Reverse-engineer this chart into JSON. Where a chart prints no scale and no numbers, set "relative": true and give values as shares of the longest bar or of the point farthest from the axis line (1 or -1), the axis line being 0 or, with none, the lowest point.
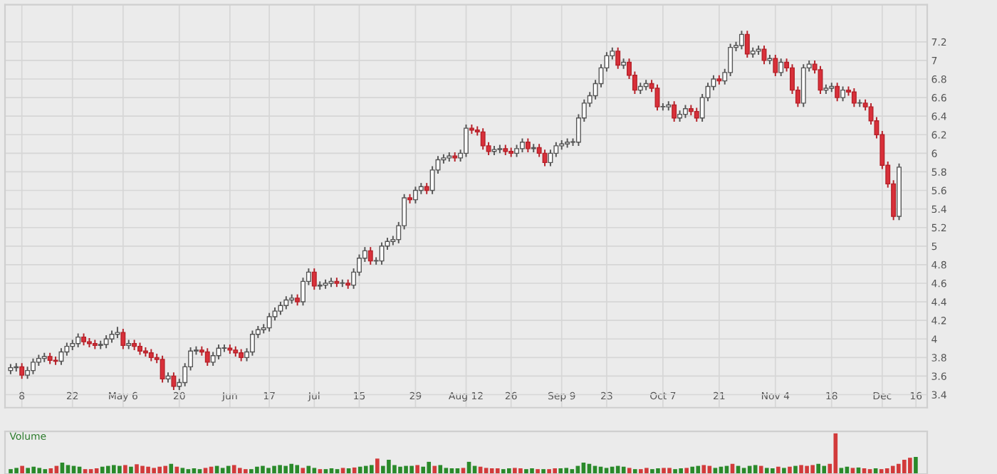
{
  "chart_data": [
    {
      "type": "candlestick",
      "categories": [
        null,
        null,
        "8",
        null,
        null,
        null,
        null,
        null,
        null,
        null,
        null,
        "22",
        null,
        null,
        null,
        null,
        null,
        null,
        null,
        null,
        "May 6",
        null,
        null,
        null,
        null,
        null,
        null,
        null,
        null,
        null,
        "20",
        null,
        null,
        null,
        null,
        null,
        null,
        null,
        null,
        "Jun",
        null,
        null,
        null,
        null,
        null,
        null,
        "17",
        null,
        null,
        null,
        null,
        null,
        null,
        null,
        "Jul",
        null,
        null,
        null,
        null,
        null,
        null,
        null,
        "15",
        null,
        null,
        null,
        null,
        null,
        null,
        null,
        null,
        null,
        "29",
        null,
        null,
        null,
        null,
        null,
        null,
        null,
        null,
        "Aug 12",
        null,
        null,
        null,
        null,
        null,
        null,
        null,
        "26",
        null,
        null,
        null,
        null,
        null,
        null,
        null,
        null,
        "Sep 9",
        null,
        null,
        null,
        null,
        null,
        null,
        null,
        "23",
        null,
        null,
        null,
        null,
        null,
        null,
        null,
        null,
        null,
        "Oct 7",
        null,
        null,
        null,
        null,
        null,
        null,
        null,
        null,
        null,
        "21",
        null,
        null,
        null,
        null,
        null,
        null,
        null,
        null,
        null,
        "Nov 4",
        null,
        null,
        null,
        null,
        null,
        null,
        null,
        null,
        null,
        "18",
        null,
        null,
        null,
        null,
        null,
        null,
        null,
        null,
        "Dec",
        null,
        null,
        null,
        null,
        null,
        "16"
      ],
      "ohlc": [
        [
          3.66,
          3.73,
          3.62,
          3.69
        ],
        [
          3.69,
          3.74,
          3.65,
          3.7
        ],
        [
          3.7,
          3.74,
          3.57,
          3.61
        ],
        [
          3.61,
          3.7,
          3.57,
          3.66
        ],
        [
          3.66,
          3.79,
          3.62,
          3.75
        ],
        [
          3.75,
          3.83,
          3.71,
          3.79
        ],
        [
          3.79,
          3.85,
          3.75,
          3.81
        ],
        [
          3.81,
          3.85,
          3.73,
          3.77
        ],
        [
          3.77,
          3.81,
          3.72,
          3.76
        ],
        [
          3.76,
          3.9,
          3.72,
          3.86
        ],
        [
          3.86,
          3.96,
          3.82,
          3.92
        ],
        [
          3.92,
          3.99,
          3.88,
          3.95
        ],
        [
          3.95,
          4.06,
          3.91,
          4.02
        ],
        [
          4.02,
          4.06,
          3.93,
          3.97
        ],
        [
          3.97,
          4.01,
          3.91,
          3.95
        ],
        [
          3.95,
          3.99,
          3.89,
          3.93
        ],
        [
          3.93,
          3.98,
          3.89,
          3.94
        ],
        [
          3.94,
          4.04,
          3.9,
          4.0
        ],
        [
          4.0,
          4.09,
          3.96,
          4.05
        ],
        [
          4.05,
          4.13,
          4.01,
          4.07
        ],
        [
          4.07,
          4.11,
          3.89,
          3.93
        ],
        [
          3.93,
          3.99,
          3.89,
          3.95
        ],
        [
          3.95,
          3.99,
          3.88,
          3.92
        ],
        [
          3.92,
          3.96,
          3.83,
          3.87
        ],
        [
          3.87,
          3.91,
          3.81,
          3.85
        ],
        [
          3.85,
          3.89,
          3.76,
          3.8
        ],
        [
          3.8,
          3.84,
          3.74,
          3.78
        ],
        [
          3.78,
          3.82,
          3.53,
          3.57
        ],
        [
          3.57,
          3.64,
          3.53,
          3.6
        ],
        [
          3.6,
          3.64,
          3.45,
          3.49
        ],
        [
          3.49,
          3.57,
          3.45,
          3.53
        ],
        [
          3.53,
          3.74,
          3.49,
          3.7
        ],
        [
          3.7,
          3.91,
          3.66,
          3.87
        ],
        [
          3.87,
          3.92,
          3.83,
          3.88
        ],
        [
          3.88,
          3.92,
          3.82,
          3.86
        ],
        [
          3.86,
          3.9,
          3.71,
          3.75
        ],
        [
          3.75,
          3.86,
          3.71,
          3.82
        ],
        [
          3.82,
          3.94,
          3.78,
          3.9
        ],
        [
          3.9,
          3.94,
          3.86,
          3.9
        ],
        [
          3.9,
          3.94,
          3.84,
          3.88
        ],
        [
          3.88,
          3.92,
          3.81,
          3.85
        ],
        [
          3.85,
          3.89,
          3.76,
          3.8
        ],
        [
          3.8,
          3.9,
          3.76,
          3.86
        ],
        [
          3.86,
          4.09,
          3.82,
          4.05
        ],
        [
          4.05,
          4.14,
          4.01,
          4.1
        ],
        [
          4.1,
          4.16,
          4.06,
          4.12
        ],
        [
          4.12,
          4.28,
          4.08,
          4.24
        ],
        [
          4.24,
          4.34,
          4.2,
          4.3
        ],
        [
          4.3,
          4.4,
          4.26,
          4.36
        ],
        [
          4.36,
          4.46,
          4.32,
          4.42
        ],
        [
          4.42,
          4.48,
          4.38,
          4.44
        ],
        [
          4.44,
          4.48,
          4.36,
          4.4
        ],
        [
          4.4,
          4.66,
          4.36,
          4.62
        ],
        [
          4.62,
          4.76,
          4.58,
          4.72
        ],
        [
          4.72,
          4.76,
          4.53,
          4.57
        ],
        [
          4.57,
          4.62,
          4.53,
          4.58
        ],
        [
          4.58,
          4.64,
          4.54,
          4.6
        ],
        [
          4.6,
          4.66,
          4.56,
          4.62
        ],
        [
          4.62,
          4.66,
          4.56,
          4.6
        ],
        [
          4.6,
          4.64,
          4.56,
          4.6
        ],
        [
          4.6,
          4.64,
          4.54,
          4.58
        ],
        [
          4.58,
          4.76,
          4.54,
          4.72
        ],
        [
          4.72,
          4.91,
          4.68,
          4.87
        ],
        [
          4.87,
          4.99,
          4.83,
          4.95
        ],
        [
          4.95,
          4.99,
          4.8,
          4.84
        ],
        [
          4.84,
          4.88,
          4.8,
          4.84
        ],
        [
          4.84,
          5.04,
          4.8,
          5.0
        ],
        [
          5.0,
          5.09,
          4.96,
          5.05
        ],
        [
          5.05,
          5.11,
          5.01,
          5.07
        ],
        [
          5.07,
          5.26,
          5.03,
          5.22
        ],
        [
          5.22,
          5.56,
          5.18,
          5.52
        ],
        [
          5.52,
          5.56,
          5.46,
          5.5
        ],
        [
          5.5,
          5.64,
          5.46,
          5.6
        ],
        [
          5.6,
          5.68,
          5.56,
          5.64
        ],
        [
          5.64,
          5.68,
          5.56,
          5.6
        ],
        [
          5.6,
          5.86,
          5.56,
          5.82
        ],
        [
          5.82,
          5.97,
          5.78,
          5.93
        ],
        [
          5.93,
          5.99,
          5.89,
          5.95
        ],
        [
          5.95,
          6.01,
          5.91,
          5.97
        ],
        [
          5.97,
          6.01,
          5.91,
          5.95
        ],
        [
          5.95,
          6.04,
          5.91,
          6.0
        ],
        [
          6.0,
          6.31,
          5.96,
          6.27
        ],
        [
          6.27,
          6.31,
          6.21,
          6.25
        ],
        [
          6.25,
          6.29,
          6.19,
          6.23
        ],
        [
          6.23,
          6.27,
          6.04,
          6.08
        ],
        [
          6.08,
          6.12,
          5.98,
          6.02
        ],
        [
          6.02,
          6.08,
          5.98,
          6.04
        ],
        [
          6.04,
          6.09,
          6.0,
          6.05
        ],
        [
          6.05,
          6.09,
          5.98,
          6.02
        ],
        [
          6.02,
          6.06,
          5.96,
          6.0
        ],
        [
          6.0,
          6.09,
          5.96,
          6.05
        ],
        [
          6.05,
          6.16,
          6.01,
          6.12
        ],
        [
          6.12,
          6.16,
          6.01,
          6.05
        ],
        [
          6.05,
          6.1,
          6.01,
          6.06
        ],
        [
          6.06,
          6.1,
          5.96,
          6.0
        ],
        [
          6.0,
          6.04,
          5.86,
          5.9
        ],
        [
          5.9,
          6.04,
          5.86,
          6.0
        ],
        [
          6.0,
          6.12,
          5.96,
          6.08
        ],
        [
          6.08,
          6.14,
          6.04,
          6.1
        ],
        [
          6.1,
          6.16,
          6.06,
          6.12
        ],
        [
          6.12,
          6.16,
          6.08,
          6.12
        ],
        [
          6.12,
          6.42,
          6.08,
          6.38
        ],
        [
          6.38,
          6.58,
          6.34,
          6.54
        ],
        [
          6.54,
          6.66,
          6.5,
          6.62
        ],
        [
          6.62,
          6.79,
          6.58,
          6.75
        ],
        [
          6.75,
          6.96,
          6.71,
          6.92
        ],
        [
          6.92,
          7.09,
          6.88,
          7.05
        ],
        [
          7.05,
          7.14,
          7.01,
          7.1
        ],
        [
          7.1,
          7.14,
          6.91,
          6.95
        ],
        [
          6.95,
          7.02,
          6.91,
          6.98
        ],
        [
          6.98,
          7.02,
          6.8,
          6.84
        ],
        [
          6.84,
          6.88,
          6.64,
          6.68
        ],
        [
          6.68,
          6.76,
          6.64,
          6.72
        ],
        [
          6.72,
          6.79,
          6.68,
          6.75
        ],
        [
          6.75,
          6.79,
          6.66,
          6.7
        ],
        [
          6.7,
          6.74,
          6.46,
          6.5
        ],
        [
          6.5,
          6.54,
          6.46,
          6.5
        ],
        [
          6.5,
          6.56,
          6.46,
          6.52
        ],
        [
          6.52,
          6.56,
          6.34,
          6.38
        ],
        [
          6.38,
          6.46,
          6.34,
          6.42
        ],
        [
          6.42,
          6.52,
          6.38,
          6.48
        ],
        [
          6.48,
          6.52,
          6.41,
          6.45
        ],
        [
          6.45,
          6.49,
          6.34,
          6.38
        ],
        [
          6.38,
          6.64,
          6.34,
          6.6
        ],
        [
          6.6,
          6.76,
          6.56,
          6.72
        ],
        [
          6.72,
          6.84,
          6.68,
          6.8
        ],
        [
          6.8,
          6.84,
          6.74,
          6.78
        ],
        [
          6.78,
          6.91,
          6.74,
          6.87
        ],
        [
          6.87,
          7.18,
          6.83,
          7.14
        ],
        [
          7.14,
          7.2,
          7.1,
          7.16
        ],
        [
          7.16,
          7.32,
          7.12,
          7.28
        ],
        [
          7.28,
          7.32,
          7.03,
          7.07
        ],
        [
          7.07,
          7.14,
          7.03,
          7.1
        ],
        [
          7.1,
          7.16,
          7.06,
          7.12
        ],
        [
          7.12,
          7.16,
          6.96,
          7.0
        ],
        [
          7.0,
          7.06,
          6.96,
          7.02
        ],
        [
          7.02,
          7.06,
          6.83,
          6.87
        ],
        [
          6.87,
          7.02,
          6.83,
          6.98
        ],
        [
          6.98,
          7.02,
          6.88,
          6.92
        ],
        [
          6.92,
          6.96,
          6.64,
          6.68
        ],
        [
          6.68,
          6.72,
          6.5,
          6.54
        ],
        [
          6.54,
          6.96,
          6.5,
          6.92
        ],
        [
          6.92,
          7.0,
          6.88,
          6.96
        ],
        [
          6.96,
          7.0,
          6.86,
          6.9
        ],
        [
          6.9,
          6.94,
          6.64,
          6.68
        ],
        [
          6.68,
          6.74,
          6.64,
          6.7
        ],
        [
          6.7,
          6.76,
          6.66,
          6.72
        ],
        [
          6.72,
          6.76,
          6.56,
          6.6
        ],
        [
          6.6,
          6.72,
          6.56,
          6.68
        ],
        [
          6.68,
          6.72,
          6.62,
          6.66
        ],
        [
          6.66,
          6.7,
          6.5,
          6.54
        ],
        [
          6.54,
          6.58,
          6.5,
          6.54
        ],
        [
          6.54,
          6.58,
          6.46,
          6.5
        ],
        [
          6.5,
          6.54,
          6.31,
          6.35
        ],
        [
          6.35,
          6.39,
          6.16,
          6.2
        ],
        [
          6.2,
          6.24,
          5.83,
          5.87
        ],
        [
          5.87,
          5.91,
          5.63,
          5.67
        ],
        [
          5.67,
          5.71,
          5.28,
          5.32
        ],
        [
          5.32,
          5.89,
          5.28,
          5.85
        ],
        null,
        null,
        null
      ],
      "ylim": [
        3.26,
        7.6
      ],
      "yticks": [
        3.4,
        3.6,
        3.8,
        4,
        4.2,
        4.4,
        4.6,
        4.8,
        5,
        5.2,
        5.4,
        5.6,
        5.8,
        6,
        6.2,
        6.4,
        6.6,
        6.8,
        7,
        7.2
      ],
      "grid": true
    },
    {
      "type": "bar",
      "title": "Volume",
      "relative": true,
      "categories": [
        null,
        null,
        null,
        null,
        null,
        null,
        null,
        null,
        null,
        null,
        null,
        null,
        null,
        null,
        null,
        null,
        null,
        null,
        null,
        null,
        null,
        null,
        null,
        null,
        null,
        null,
        null,
        null,
        null,
        null,
        null,
        null,
        null,
        null,
        null,
        null,
        null,
        null,
        null,
        null,
        null,
        null,
        null,
        null,
        null,
        null,
        null,
        null,
        null,
        null,
        null,
        null,
        null,
        null,
        null,
        null,
        null,
        null,
        null,
        null,
        null,
        null,
        null,
        null,
        null,
        null,
        null,
        null,
        null,
        null,
        null,
        null,
        null,
        null,
        null,
        null,
        null,
        null,
        null,
        null,
        null,
        null,
        null,
        null,
        null,
        null,
        null,
        null,
        null,
        null,
        null,
        null,
        null,
        null,
        null,
        null,
        null,
        null,
        null,
        null,
        null,
        null,
        null,
        null,
        null,
        null,
        null,
        null,
        null,
        null,
        null,
        null,
        null,
        null,
        null,
        null,
        null,
        null,
        null,
        null,
        null,
        null,
        null,
        null,
        null,
        null,
        null,
        null,
        null,
        null,
        null,
        null,
        null,
        null,
        null,
        null,
        null,
        null,
        null,
        null,
        null,
        null,
        null,
        null,
        null,
        null,
        null,
        null,
        null,
        null,
        null,
        null,
        null,
        null,
        null,
        null,
        null,
        null,
        null
      ],
      "values": [
        0.12,
        0.15,
        0.2,
        0.15,
        0.18,
        0.15,
        0.12,
        0.14,
        0.2,
        0.28,
        0.22,
        0.2,
        0.18,
        0.12,
        0.12,
        0.14,
        0.18,
        0.2,
        0.22,
        0.2,
        0.22,
        0.18,
        0.24,
        0.2,
        0.18,
        0.15,
        0.18,
        0.2,
        0.25,
        0.18,
        0.15,
        0.12,
        0.14,
        0.12,
        0.15,
        0.18,
        0.2,
        0.15,
        0.2,
        0.22,
        0.15,
        0.12,
        0.12,
        0.18,
        0.2,
        0.15,
        0.2,
        0.22,
        0.2,
        0.25,
        0.22,
        0.15,
        0.2,
        0.15,
        0.12,
        0.12,
        0.14,
        0.12,
        0.15,
        0.14,
        0.16,
        0.18,
        0.2,
        0.22,
        0.38,
        0.2,
        0.35,
        0.22,
        0.18,
        0.2,
        0.2,
        0.22,
        0.18,
        0.3,
        0.2,
        0.22,
        0.15,
        0.14,
        0.14,
        0.15,
        0.3,
        0.2,
        0.18,
        0.15,
        0.14,
        0.14,
        0.12,
        0.14,
        0.15,
        0.14,
        0.12,
        0.14,
        0.12,
        0.12,
        0.12,
        0.14,
        0.14,
        0.15,
        0.12,
        0.2,
        0.28,
        0.25,
        0.2,
        0.18,
        0.15,
        0.18,
        0.2,
        0.18,
        0.15,
        0.12,
        0.12,
        0.15,
        0.12,
        0.14,
        0.15,
        0.15,
        0.12,
        0.14,
        0.15,
        0.18,
        0.2,
        0.22,
        0.2,
        0.15,
        0.18,
        0.2,
        0.25,
        0.2,
        0.15,
        0.2,
        0.22,
        0.2,
        0.15,
        0.14,
        0.18,
        0.15,
        0.18,
        0.2,
        0.22,
        0.2,
        0.22,
        0.25,
        0.2,
        0.25,
        1.0,
        0.15,
        0.18,
        0.15,
        0.16,
        0.14,
        0.12,
        0.14,
        0.12,
        0.14,
        0.2,
        0.25,
        0.35,
        0.4,
        0.42
      ],
      "colors": [
        "#2a8a2a",
        "#2a8a2a",
        "#d23b3b",
        "#2a8a2a",
        "#2a8a2a",
        "#2a8a2a",
        "#2a8a2a",
        "#d23b3b",
        "#d23b3b",
        "#2a8a2a",
        "#2a8a2a",
        "#2a8a2a",
        "#2a8a2a",
        "#d23b3b",
        "#d23b3b",
        "#d23b3b",
        "#2a8a2a",
        "#2a8a2a",
        "#2a8a2a",
        "#2a8a2a",
        "#d23b3b",
        "#2a8a2a",
        "#d23b3b",
        "#d23b3b",
        "#d23b3b",
        "#d23b3b",
        "#d23b3b",
        "#d23b3b",
        "#2a8a2a",
        "#d23b3b",
        "#2a8a2a",
        "#2a8a2a",
        "#2a8a2a",
        "#2a8a2a",
        "#d23b3b",
        "#d23b3b",
        "#2a8a2a",
        "#2a8a2a",
        "#2a8a2a",
        "#d23b3b",
        "#d23b3b",
        "#d23b3b",
        "#2a8a2a",
        "#2a8a2a",
        "#2a8a2a",
        "#2a8a2a",
        "#2a8a2a",
        "#2a8a2a",
        "#2a8a2a",
        "#2a8a2a",
        "#2a8a2a",
        "#d23b3b",
        "#2a8a2a",
        "#2a8a2a",
        "#d23b3b",
        "#2a8a2a",
        "#2a8a2a",
        "#2a8a2a",
        "#d23b3b",
        "#2a8a2a",
        "#d23b3b",
        "#2a8a2a",
        "#2a8a2a",
        "#2a8a2a",
        "#d23b3b",
        "#2a8a2a",
        "#2a8a2a",
        "#2a8a2a",
        "#2a8a2a",
        "#2a8a2a",
        "#2a8a2a",
        "#d23b3b",
        "#2a8a2a",
        "#2a8a2a",
        "#d23b3b",
        "#2a8a2a",
        "#2a8a2a",
        "#2a8a2a",
        "#2a8a2a",
        "#d23b3b",
        "#2a8a2a",
        "#2a8a2a",
        "#d23b3b",
        "#d23b3b",
        "#d23b3b",
        "#d23b3b",
        "#2a8a2a",
        "#2a8a2a",
        "#d23b3b",
        "#d23b3b",
        "#2a8a2a",
        "#2a8a2a",
        "#d23b3b",
        "#2a8a2a",
        "#d23b3b",
        "#d23b3b",
        "#2a8a2a",
        "#2a8a2a",
        "#2a8a2a",
        "#2a8a2a",
        "#2a8a2a",
        "#2a8a2a",
        "#2a8a2a",
        "#2a8a2a",
        "#2a8a2a",
        "#2a8a2a",
        "#2a8a2a",
        "#2a8a2a",
        "#d23b3b",
        "#2a8a2a",
        "#d23b3b",
        "#d23b3b",
        "#2a8a2a",
        "#2a8a2a",
        "#d23b3b",
        "#d23b3b",
        "#2a8a2a",
        "#2a8a2a",
        "#d23b3b",
        "#2a8a2a",
        "#2a8a2a",
        "#d23b3b",
        "#d23b3b",
        "#2a8a2a",
        "#2a8a2a",
        "#2a8a2a",
        "#d23b3b",
        "#2a8a2a",
        "#2a8a2a",
        "#2a8a2a",
        "#2a8a2a",
        "#d23b3b",
        "#2a8a2a",
        "#2a8a2a",
        "#d23b3b",
        "#2a8a2a",
        "#d23b3b",
        "#2a8a2a",
        "#d23b3b",
        "#d23b3b",
        "#d23b3b",
        "#2a8a2a",
        "#2a8a2a",
        "#d23b3b",
        "#d23b3b",
        "#2a8a2a",
        "#2a8a2a",
        "#d23b3b",
        "#2a8a2a",
        "#d23b3b",
        "#d23b3b",
        "#2a8a2a",
        "#d23b3b",
        "#d23b3b",
        "#d23b3b",
        "#d23b3b",
        "#d23b3b",
        "#d23b3b",
        "#2a8a2a"
      ]
    }
  ]
}
